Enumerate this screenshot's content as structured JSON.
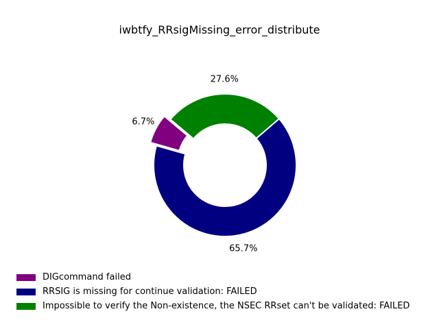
{
  "chart_data": {
    "type": "pie",
    "style": "donut",
    "title": "iwbtfy_RRsigMissing_error_distribute",
    "slices": [
      {
        "label": "DIGcommand failed",
        "percent": 6.7,
        "label_text": "6.7%",
        "color": "#800080",
        "exploded": true
      },
      {
        "label": "RRSIG is missing for continue validation: FAILED",
        "percent": 65.7,
        "label_text": "65.7%",
        "color": "#000080",
        "exploded": false
      },
      {
        "label": "Impossible to verify the Non-existence, the NSEC RRset can't be validated: FAILED",
        "percent": 27.6,
        "label_text": "27.6%",
        "color": "#008000",
        "exploded": false
      }
    ],
    "legend_position": "bottom-left",
    "grid": false
  }
}
